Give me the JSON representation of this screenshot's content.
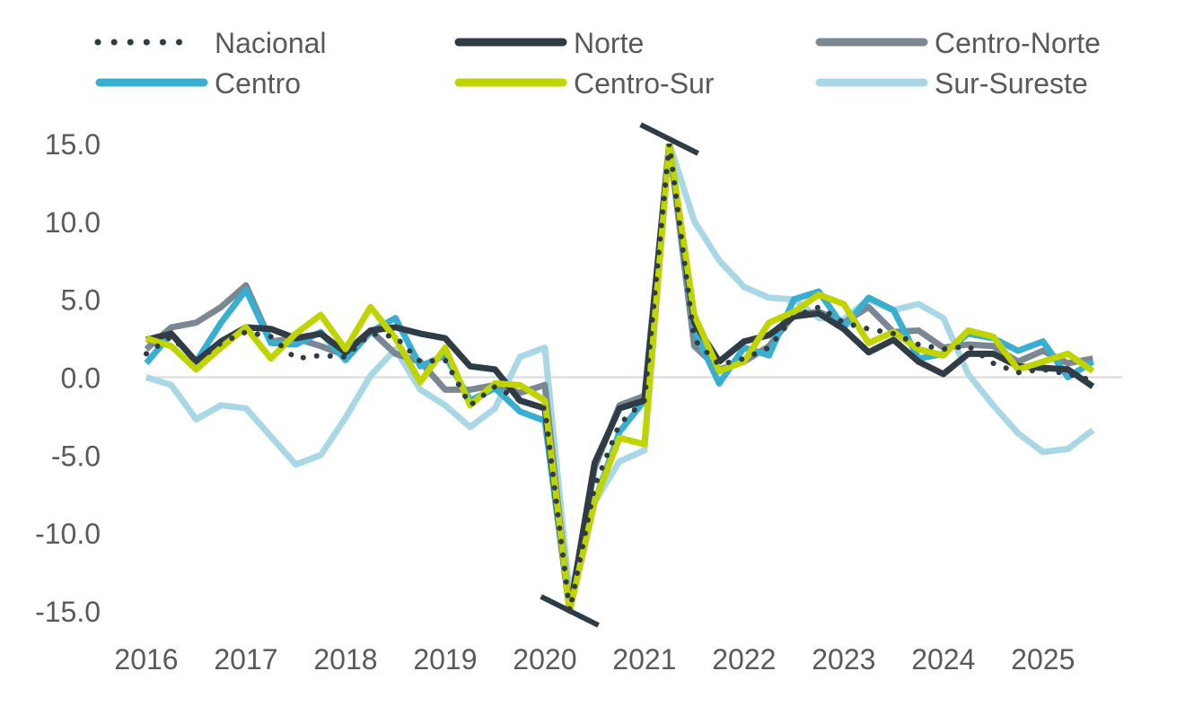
{
  "chart_data": {
    "type": "line",
    "title": "",
    "xlabel": "",
    "ylabel": "",
    "ylim": [
      -15,
      15
    ],
    "xlim": [
      2016,
      2025.75
    ],
    "y_ticks": [
      "15.0",
      "10.0",
      "5.0",
      "0.0",
      "-5.0",
      "-10.0",
      "-15.0"
    ],
    "x_ticks": [
      "2016",
      "2017",
      "2018",
      "2019",
      "2020",
      "2021",
      "2022",
      "2023",
      "2024",
      "2025"
    ],
    "grid": false,
    "legend_position": "top",
    "axis_breaks": [
      {
        "at": 2021.25,
        "value": 15,
        "direction": "top"
      },
      {
        "at": 2020.25,
        "value": -15,
        "direction": "bottom"
      }
    ],
    "series": [
      {
        "name": "Nacional",
        "color": "#2f3b45",
        "style": "dotted",
        "x": [
          2016,
          2016.25,
          2016.5,
          2016.75,
          2017,
          2017.25,
          2017.5,
          2017.75,
          2018,
          2018.25,
          2018.5,
          2018.75,
          2019,
          2019.25,
          2019.5,
          2019.75,
          2020,
          2020.25,
          2020.5,
          2020.75,
          2021,
          2021.25,
          2021.5,
          2021.75,
          2022,
          2022.25,
          2022.5,
          2022.75,
          2023,
          2023.25,
          2023.5,
          2023.75,
          2024,
          2024.25,
          2024.5,
          2024.75,
          2025,
          2025.25,
          2025.5
        ],
        "y": [
          1.5,
          2.6,
          1.0,
          2.2,
          2.9,
          2.6,
          1.2,
          1.4,
          1.3,
          2.8,
          2.6,
          1.0,
          1.1,
          -1.8,
          -0.6,
          -1.5,
          -2.0,
          -15,
          -7.0,
          -3.0,
          -1.5,
          15,
          2.4,
          0.8,
          1.2,
          1.9,
          3.9,
          4.5,
          3.5,
          3.1,
          2.8,
          2.1,
          1.8,
          2.0,
          0.9,
          0.3,
          0.5,
          0.2,
          -0.2
        ]
      },
      {
        "name": "Norte",
        "color": "#2f3b45",
        "style": "solid",
        "x": [
          2016,
          2016.25,
          2016.5,
          2016.75,
          2017,
          2017.25,
          2017.5,
          2017.75,
          2018,
          2018.25,
          2018.5,
          2018.75,
          2019,
          2019.25,
          2019.5,
          2019.75,
          2020,
          2020.25,
          2020.5,
          2020.75,
          2021,
          2021.25,
          2021.5,
          2021.75,
          2022,
          2022.25,
          2022.5,
          2022.75,
          2023,
          2023.25,
          2023.5,
          2023.75,
          2024,
          2024.25,
          2024.5,
          2024.75,
          2025,
          2025.25,
          2025.5
        ],
        "y": [
          2.4,
          2.8,
          1.0,
          2.3,
          3.2,
          3.1,
          2.5,
          2.8,
          1.6,
          3.0,
          3.2,
          2.8,
          2.5,
          0.7,
          0.5,
          -1.5,
          -2.0,
          -15,
          -5.5,
          -2.0,
          -1.5,
          15,
          3.5,
          1.0,
          2.3,
          2.7,
          3.9,
          4.1,
          3.1,
          1.6,
          2.4,
          1.0,
          0.2,
          1.5,
          1.5,
          0.7,
          0.6,
          0.5,
          -0.6
        ]
      },
      {
        "name": "Centro-Norte",
        "color": "#7b8893",
        "style": "solid",
        "x": [
          2016,
          2016.25,
          2016.5,
          2016.75,
          2017,
          2017.25,
          2017.5,
          2017.75,
          2018,
          2018.25,
          2018.5,
          2018.75,
          2019,
          2019.25,
          2019.5,
          2019.75,
          2020,
          2020.25,
          2020.5,
          2020.75,
          2021,
          2021.25,
          2021.5,
          2021.75,
          2022,
          2022.25,
          2022.5,
          2022.75,
          2023,
          2023.25,
          2023.5,
          2023.75,
          2024,
          2024.25,
          2024.5,
          2024.75,
          2025,
          2025.25,
          2025.5
        ],
        "y": [
          1.8,
          3.2,
          3.5,
          4.5,
          5.9,
          2.3,
          2.5,
          2.0,
          1.4,
          3.0,
          1.5,
          1.0,
          -0.8,
          -0.8,
          -0.5,
          -1.0,
          -0.5,
          -15,
          -5.8,
          -1.8,
          -1.2,
          15,
          2.0,
          0.5,
          1.0,
          2.0,
          4.0,
          4.2,
          3.5,
          4.5,
          2.9,
          3.0,
          1.9,
          2.1,
          2.0,
          1.0,
          1.7,
          0.9,
          1.2
        ]
      },
      {
        "name": "Centro",
        "color": "#3aaed0",
        "style": "solid",
        "x": [
          2016,
          2016.25,
          2016.5,
          2016.75,
          2017,
          2017.25,
          2017.5,
          2017.75,
          2018,
          2018.25,
          2018.5,
          2018.75,
          2019,
          2019.25,
          2019.5,
          2019.75,
          2020,
          2020.25,
          2020.5,
          2020.75,
          2021,
          2021.25,
          2021.5,
          2021.75,
          2022,
          2022.25,
          2022.5,
          2022.75,
          2023,
          2023.25,
          2023.5,
          2023.75,
          2024,
          2024.25,
          2024.5,
          2024.75,
          2025,
          2025.25,
          2025.5
        ],
        "y": [
          0.9,
          2.8,
          1.0,
          3.5,
          5.6,
          2.2,
          2.1,
          2.9,
          1.1,
          2.9,
          3.8,
          0.7,
          1.4,
          -1.5,
          -0.7,
          -2.2,
          -2.8,
          -15,
          -8.0,
          -3.5,
          -1.5,
          15,
          3.0,
          -0.4,
          1.9,
          1.4,
          5.0,
          5.5,
          3.2,
          5.1,
          4.3,
          1.2,
          1.5,
          2.8,
          2.5,
          1.7,
          2.3,
          0.0,
          1.0
        ]
      },
      {
        "name": "Centro-Sur",
        "color": "#bfd400",
        "style": "solid",
        "x": [
          2016,
          2016.25,
          2016.5,
          2016.75,
          2017,
          2017.25,
          2017.5,
          2017.75,
          2018,
          2018.25,
          2018.5,
          2018.75,
          2019,
          2019.25,
          2019.5,
          2019.75,
          2020,
          2020.25,
          2020.5,
          2020.75,
          2021,
          2021.25,
          2021.5,
          2021.75,
          2022,
          2022.25,
          2022.5,
          2022.75,
          2023,
          2023.25,
          2023.5,
          2023.75,
          2024,
          2024.25,
          2024.5,
          2024.75,
          2025,
          2025.25,
          2025.5
        ],
        "y": [
          2.5,
          2.0,
          0.5,
          1.9,
          3.2,
          1.2,
          2.8,
          4.0,
          1.8,
          4.5,
          2.5,
          -0.3,
          1.9,
          -1.8,
          -0.4,
          -0.5,
          -1.5,
          -15,
          -8.0,
          -3.9,
          -4.3,
          15,
          4.0,
          0.4,
          1.0,
          3.5,
          4.2,
          5.3,
          4.7,
          2.2,
          2.9,
          1.8,
          1.4,
          3.0,
          2.6,
          0.5,
          1.0,
          1.5,
          0.4
        ]
      },
      {
        "name": "Sur-Sureste",
        "color": "#a8d8e6",
        "style": "solid",
        "x": [
          2016,
          2016.25,
          2016.5,
          2016.75,
          2017,
          2017.25,
          2017.5,
          2017.75,
          2018,
          2018.25,
          2018.5,
          2018.75,
          2019,
          2019.25,
          2019.5,
          2019.75,
          2020,
          2020.25,
          2020.5,
          2020.75,
          2021,
          2021.25,
          2021.5,
          2021.75,
          2022,
          2022.25,
          2022.5,
          2022.75,
          2023,
          2023.25,
          2023.5,
          2023.75,
          2024,
          2024.25,
          2024.5,
          2024.75,
          2025,
          2025.25,
          2025.5
        ],
        "y": [
          0.0,
          -0.5,
          -2.7,
          -1.8,
          -2.0,
          -3.8,
          -5.6,
          -5.0,
          -2.6,
          0.1,
          1.8,
          -0.8,
          -1.8,
          -3.2,
          -2.0,
          1.3,
          1.9,
          -14,
          -8.0,
          -5.4,
          -4.7,
          15,
          10.0,
          7.5,
          5.8,
          5.1,
          5.0,
          3.8,
          3.7,
          5.0,
          4.3,
          4.7,
          3.8,
          0.2,
          -1.8,
          -3.6,
          -4.8,
          -4.6,
          -3.4
        ]
      }
    ]
  }
}
